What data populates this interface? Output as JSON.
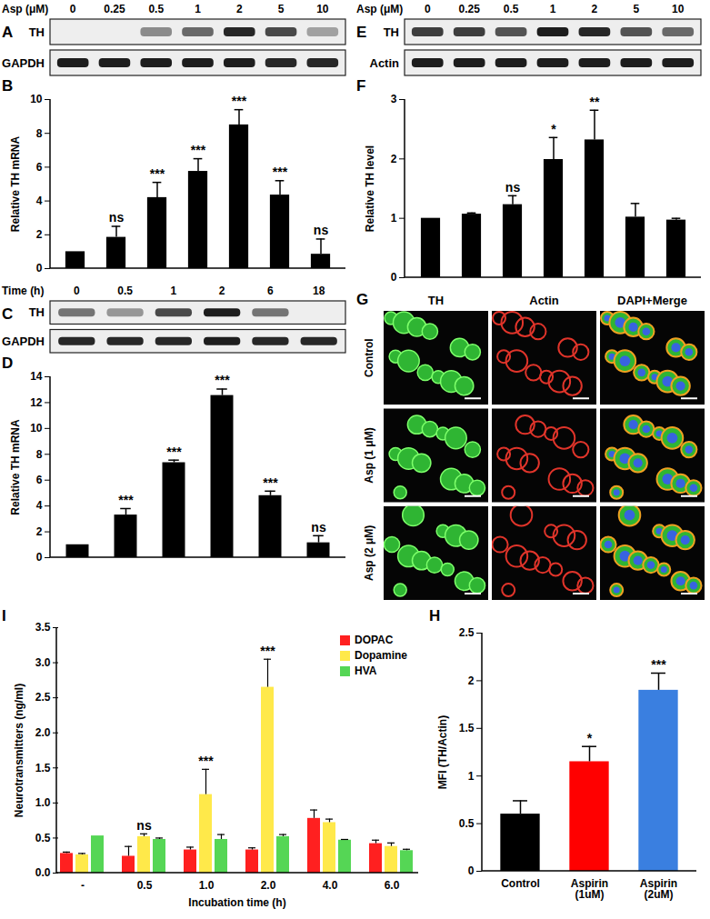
{
  "chart_data": [
    {
      "panel": "A",
      "type": "blot",
      "header": "Asp (μM)",
      "lanes": [
        "0",
        "0.25",
        "0.5",
        "1",
        "2",
        "5",
        "10"
      ],
      "rows": [
        {
          "name": "TH",
          "band_intensity": [
            0,
            0,
            0.45,
            0.6,
            0.9,
            0.75,
            0.35
          ]
        },
        {
          "name": "GAPDH",
          "band_intensity": [
            0.95,
            0.95,
            0.95,
            0.95,
            0.95,
            0.9,
            0.9
          ]
        }
      ]
    },
    {
      "panel": "B",
      "type": "bar",
      "categories": [
        null,
        null,
        null,
        null,
        null,
        null,
        null
      ],
      "values": [
        1,
        1.85,
        4.2,
        5.75,
        8.5,
        4.35,
        0.85
      ],
      "errors": [
        0,
        0.65,
        0.9,
        0.75,
        0.9,
        0.85,
        0.9
      ],
      "annotations": [
        null,
        "ns",
        "***",
        "***",
        "***",
        "***",
        "ns"
      ],
      "ylabel": "Relative TH mRNA",
      "ylim": [
        0,
        10
      ],
      "yticks": [
        0,
        2,
        4,
        6,
        8,
        10
      ],
      "color": "#000000",
      "tick_labels": "y"
    },
    {
      "panel": "C",
      "type": "blot",
      "header": "Time (h)",
      "lanes": [
        "0",
        "0.5",
        "1",
        "2",
        "6",
        "18"
      ],
      "rows": [
        {
          "name": "TH",
          "band_intensity": [
            0.55,
            0.4,
            0.75,
            0.95,
            0.55,
            0
          ]
        },
        {
          "name": "GAPDH",
          "band_intensity": [
            0.9,
            0.9,
            0.9,
            0.95,
            0.9,
            0.9
          ]
        }
      ]
    },
    {
      "panel": "D",
      "type": "bar",
      "categories": [
        null,
        null,
        null,
        null,
        null,
        null
      ],
      "values": [
        1,
        3.3,
        7.35,
        12.55,
        4.8,
        1.15
      ],
      "errors": [
        0,
        0.5,
        0.2,
        0.5,
        0.35,
        0.55
      ],
      "annotations": [
        null,
        "***",
        "***",
        "***",
        "***",
        "ns"
      ],
      "ylabel": "Relative TH mRNA",
      "ylim": [
        0,
        14
      ],
      "yticks": [
        0,
        2,
        4,
        6,
        8,
        10,
        12,
        14
      ],
      "color": "#000000",
      "tick_labels": "y"
    },
    {
      "panel": "E",
      "type": "blot",
      "header": "Asp (μM)",
      "lanes": [
        "0",
        "0.25",
        "0.5",
        "1",
        "2",
        "5",
        "10"
      ],
      "rows": [
        {
          "name": "TH",
          "band_intensity": [
            0.8,
            0.8,
            0.7,
            0.95,
            0.9,
            0.7,
            0.6
          ]
        },
        {
          "name": "Actin",
          "band_intensity": [
            0.95,
            0.95,
            0.95,
            0.95,
            0.95,
            0.95,
            0.95
          ]
        }
      ]
    },
    {
      "panel": "F",
      "type": "bar",
      "categories": [
        null,
        null,
        null,
        null,
        null,
        null,
        null
      ],
      "values": [
        1,
        1.07,
        1.23,
        1.99,
        2.32,
        1.02,
        0.97
      ],
      "errors": [
        0,
        0.02,
        0.15,
        0.37,
        0.5,
        0.23,
        0.03
      ],
      "annotations": [
        null,
        null,
        "ns",
        "*",
        "**",
        null,
        null
      ],
      "ylabel": "Relative TH level",
      "ylim": [
        0,
        3
      ],
      "yticks": [
        0,
        1,
        2,
        3
      ],
      "color": "#000000",
      "tick_labels": "y"
    },
    {
      "panel": "G",
      "type": "image",
      "columns": [
        "TH",
        "Actin",
        "DAPI+Merge"
      ],
      "rows": [
        "Control",
        "Asp (1 μM)",
        "Asp (2 μM)"
      ]
    },
    {
      "panel": "H",
      "type": "bar",
      "categories": [
        "Control",
        "Aspirin\n(1uM)",
        "Aspirin\n(2uM)"
      ],
      "values": [
        0.6,
        1.15,
        1.9
      ],
      "errors": [
        0.14,
        0.16,
        0.18
      ],
      "annotations": [
        null,
        "*",
        "***"
      ],
      "ylabel": "MFI (TH/Actin)",
      "ylim": [
        0,
        2.5
      ],
      "yticks": [
        0,
        0.5,
        1,
        1.5,
        2,
        2.5
      ],
      "colors": [
        "#000000",
        "#ff0000",
        "#3a7fe0"
      ]
    },
    {
      "panel": "I",
      "type": "grouped_bar",
      "categories": [
        "-",
        "0.5",
        "1.0",
        "2.0",
        "4.0",
        "6.0"
      ],
      "xlabel": "Incubation time (h)",
      "ylabel": "Neurotransmitters (ng/ml)",
      "legend": "top-right",
      "ylim": [
        0,
        3.5
      ],
      "yticks": [
        {
          "value": 0,
          "label": "0.0"
        },
        {
          "value": 0.5,
          "label": "0.5"
        },
        {
          "value": 1,
          "label": "1.0"
        },
        {
          "value": 1.5,
          "label": "1.5"
        },
        {
          "value": 2,
          "label": "2.0"
        },
        {
          "value": 2.5,
          "label": "2.5"
        },
        {
          "value": 3,
          "label": "3.0"
        },
        {
          "value": 3.5,
          "label": "3.5"
        }
      ],
      "series": [
        {
          "name": "DOPAC",
          "color": "#ff2020",
          "values": [
            0.28,
            0.24,
            0.33,
            0.33,
            0.78,
            0.42
          ],
          "errors": [
            0.02,
            0.14,
            0.04,
            0.03,
            0.12,
            0.05
          ]
        },
        {
          "name": "Dopamine",
          "color": "#ffe94a",
          "values": [
            0.26,
            0.52,
            1.12,
            2.65,
            0.72,
            0.38
          ],
          "errors": [
            0.02,
            0.04,
            0.36,
            0.4,
            0.05,
            0.05
          ]
        },
        {
          "name": "HVA",
          "color": "#55d655",
          "values": [
            0.53,
            0.48,
            0.48,
            0.52,
            0.47,
            0.32
          ],
          "errors": [
            0,
            0.02,
            0.07,
            0.03,
            0.01,
            0.02
          ]
        }
      ],
      "annotations": [
        {
          "category": "0.5",
          "series": "Dopamine",
          "text": "ns"
        },
        {
          "category": "1.0",
          "series": "Dopamine",
          "text": "***"
        },
        {
          "category": "2.0",
          "series": "Dopamine",
          "text": "***"
        }
      ]
    }
  ]
}
